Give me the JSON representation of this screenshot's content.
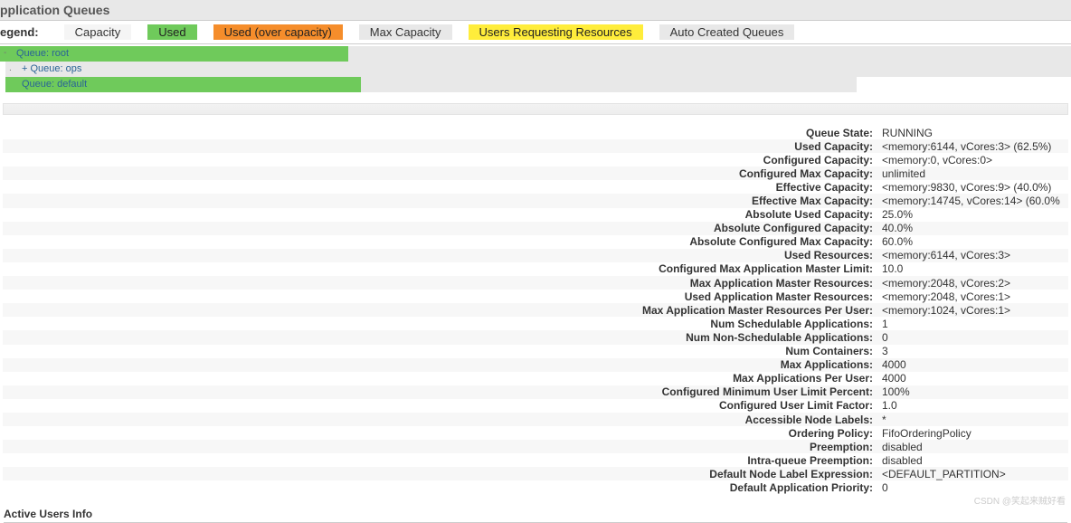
{
  "title": "pplication Queues",
  "legend": {
    "label": "egend:",
    "capacity": "Capacity",
    "used": "Used",
    "over": "Used (over capacity)",
    "max": "Max Capacity",
    "req": "Users Requesting Resources",
    "auto": "Auto Created Queues"
  },
  "queues": {
    "root": {
      "label": "Queue: root",
      "used_pct": 32.5,
      "gray_pct": 100
    },
    "ops": {
      "label": "+ Queue: ops",
      "used_pct": 0,
      "gray_pct": 100
    },
    "default": {
      "label": "Queue: default",
      "used_pct": 33.4,
      "gray_left": 33.4,
      "gray_width": 46.5
    }
  },
  "rows": [
    {
      "k": "Queue State:",
      "v": "RUNNING"
    },
    {
      "k": "Used Capacity:",
      "v": "<memory:6144, vCores:3> (62.5%)"
    },
    {
      "k": "Configured Capacity:",
      "v": "<memory:0, vCores:0>"
    },
    {
      "k": "Configured Max Capacity:",
      "v": "unlimited"
    },
    {
      "k": "Effective Capacity:",
      "v": "<memory:9830, vCores:9> (40.0%)"
    },
    {
      "k": "Effective Max Capacity:",
      "v": "<memory:14745, vCores:14> (60.0%"
    },
    {
      "k": "Absolute Used Capacity:",
      "v": "25.0%"
    },
    {
      "k": "Absolute Configured Capacity:",
      "v": "40.0%"
    },
    {
      "k": "Absolute Configured Max Capacity:",
      "v": "60.0%"
    },
    {
      "k": "Used Resources:",
      "v": "<memory:6144, vCores:3>"
    },
    {
      "k": "Configured Max Application Master Limit:",
      "v": "10.0"
    },
    {
      "k": "Max Application Master Resources:",
      "v": "<memory:2048, vCores:2>"
    },
    {
      "k": "Used Application Master Resources:",
      "v": "<memory:2048, vCores:1>"
    },
    {
      "k": "Max Application Master Resources Per User:",
      "v": "<memory:1024, vCores:1>"
    },
    {
      "k": "Num Schedulable Applications:",
      "v": "1"
    },
    {
      "k": "Num Non-Schedulable Applications:",
      "v": "0"
    },
    {
      "k": "Num Containers:",
      "v": "3"
    },
    {
      "k": "Max Applications:",
      "v": "4000"
    },
    {
      "k": "Max Applications Per User:",
      "v": "4000"
    },
    {
      "k": "Configured Minimum User Limit Percent:",
      "v": "100%"
    },
    {
      "k": "Configured User Limit Factor:",
      "v": "1.0"
    },
    {
      "k": "Accessible Node Labels:",
      "v": "*"
    },
    {
      "k": "Ordering Policy:",
      "v": "FifoOrderingPolicy"
    },
    {
      "k": "Preemption:",
      "v": "disabled"
    },
    {
      "k": "Intra-queue Preemption:",
      "v": "disabled"
    },
    {
      "k": "Default Node Label Expression:",
      "v": "<DEFAULT_PARTITION>"
    },
    {
      "k": "Default Application Priority:",
      "v": "0"
    }
  ],
  "active_users": "Active Users Info",
  "watermark": "CSDN @笑起来贼好看"
}
